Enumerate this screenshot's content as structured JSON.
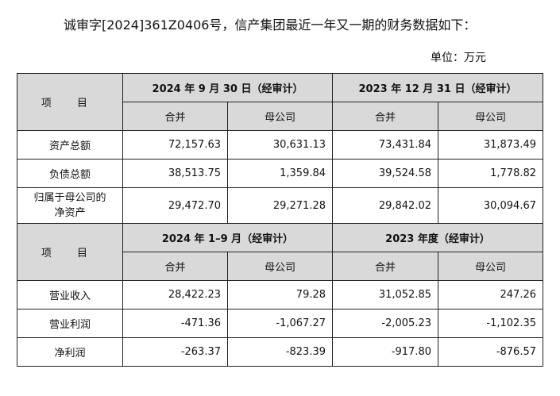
{
  "intro_text": "诚审字[2024]361Z0406号，信产集团最近一年又一期的财务数据如下：",
  "unit_text": "单位：万元",
  "section1": {
    "item_header": "项 目",
    "period_a": "2024 年 9 月 30 日（经审计）",
    "period_b": "2023 年 12 月 31 日（经审计）",
    "sub_headers": [
      "合并",
      "母公司",
      "合并",
      "母公司"
    ],
    "rows": [
      {
        "label": "资产总额",
        "values": [
          "72,157.63",
          "30,631.13",
          "73,431.84",
          "31,873.49"
        ]
      },
      {
        "label": "负债总额",
        "values": [
          "38,513.75",
          "1,359.84",
          "39,524.58",
          "1,778.82"
        ]
      },
      {
        "label_line1": "归属于母公司的",
        "label_line2": "净资产",
        "values": [
          "29,472.70",
          "29,271.28",
          "29,842.02",
          "30,094.67"
        ]
      }
    ]
  },
  "section2": {
    "item_header": "项 目",
    "period_a": "2024 年 1–9 月（经审计）",
    "period_b": "2023 年度（经审计）",
    "sub_headers": [
      "合并",
      "母公司",
      "合并",
      "母公司"
    ],
    "rows": [
      {
        "label": "营业收入",
        "values": [
          "28,422.23",
          "79.28",
          "31,052.85",
          "247.26"
        ]
      },
      {
        "label": "营业利润",
        "values": [
          "-471.36",
          "-1,067.27",
          "-2,005.23",
          "-1,102.35"
        ]
      },
      {
        "label": "净利润",
        "values": [
          "-263.37",
          "-823.39",
          "-917.80",
          "-876.57"
        ]
      }
    ]
  }
}
